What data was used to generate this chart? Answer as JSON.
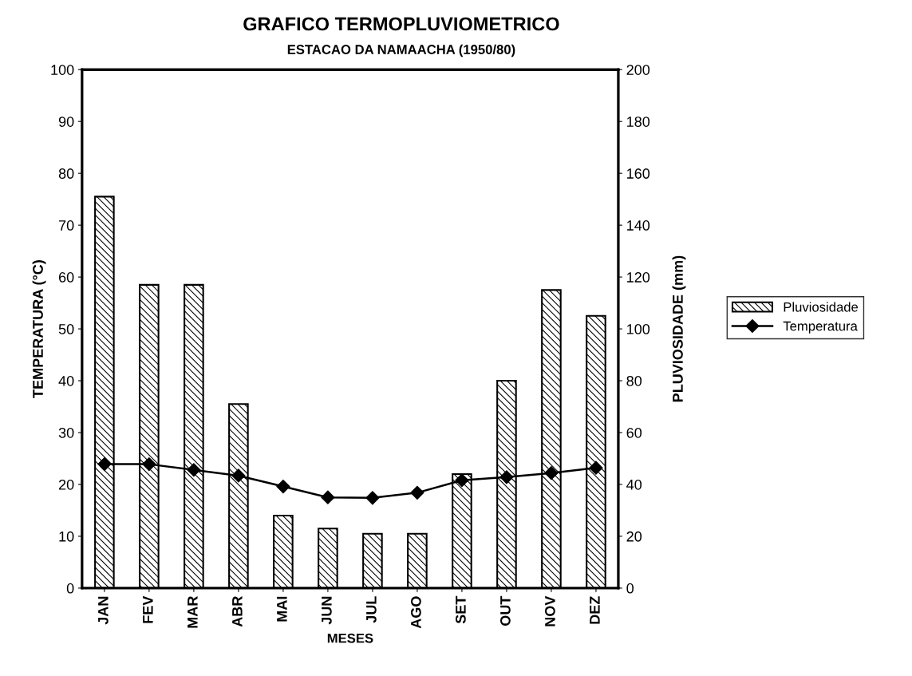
{
  "chart_data": {
    "type": "bar",
    "title": "GRAFICO TERMOPLUVIOMETRICO",
    "subtitle": "ESTACAO DA NAMAACHA (1950/80)",
    "xlabel": "MESES",
    "ylabel": "TEMPERATURA (°C)",
    "y2label": "PLUVIOSIDADE (mm)",
    "categories": [
      "JAN",
      "FEV",
      "MAR",
      "ABR",
      "MAI",
      "JUN",
      "JUL",
      "AGO",
      "SET",
      "OUT",
      "NOV",
      "DEZ"
    ],
    "series": [
      {
        "name": "Pluviosidade",
        "axis": "y2",
        "color": "#000000",
        "values": [
          151,
          117,
          117,
          71,
          28,
          23,
          21,
          21,
          44,
          80,
          115,
          105
        ]
      },
      {
        "name": "Temperatura",
        "type": "line",
        "axis": "y",
        "color": "#000000",
        "marker": "diamond",
        "values": [
          23.9,
          23.9,
          22.8,
          21.7,
          19.6,
          17.5,
          17.4,
          18.4,
          20.8,
          21.4,
          22.2,
          23.2
        ]
      }
    ],
    "ylim": [
      0,
      100
    ],
    "yticks": [
      0,
      10,
      20,
      30,
      40,
      50,
      60,
      70,
      80,
      90,
      100
    ],
    "y2lim": [
      0,
      200
    ],
    "y2ticks": [
      0,
      20,
      40,
      60,
      80,
      100,
      120,
      140,
      160,
      180,
      200
    ],
    "grid": false,
    "legend": "right"
  }
}
